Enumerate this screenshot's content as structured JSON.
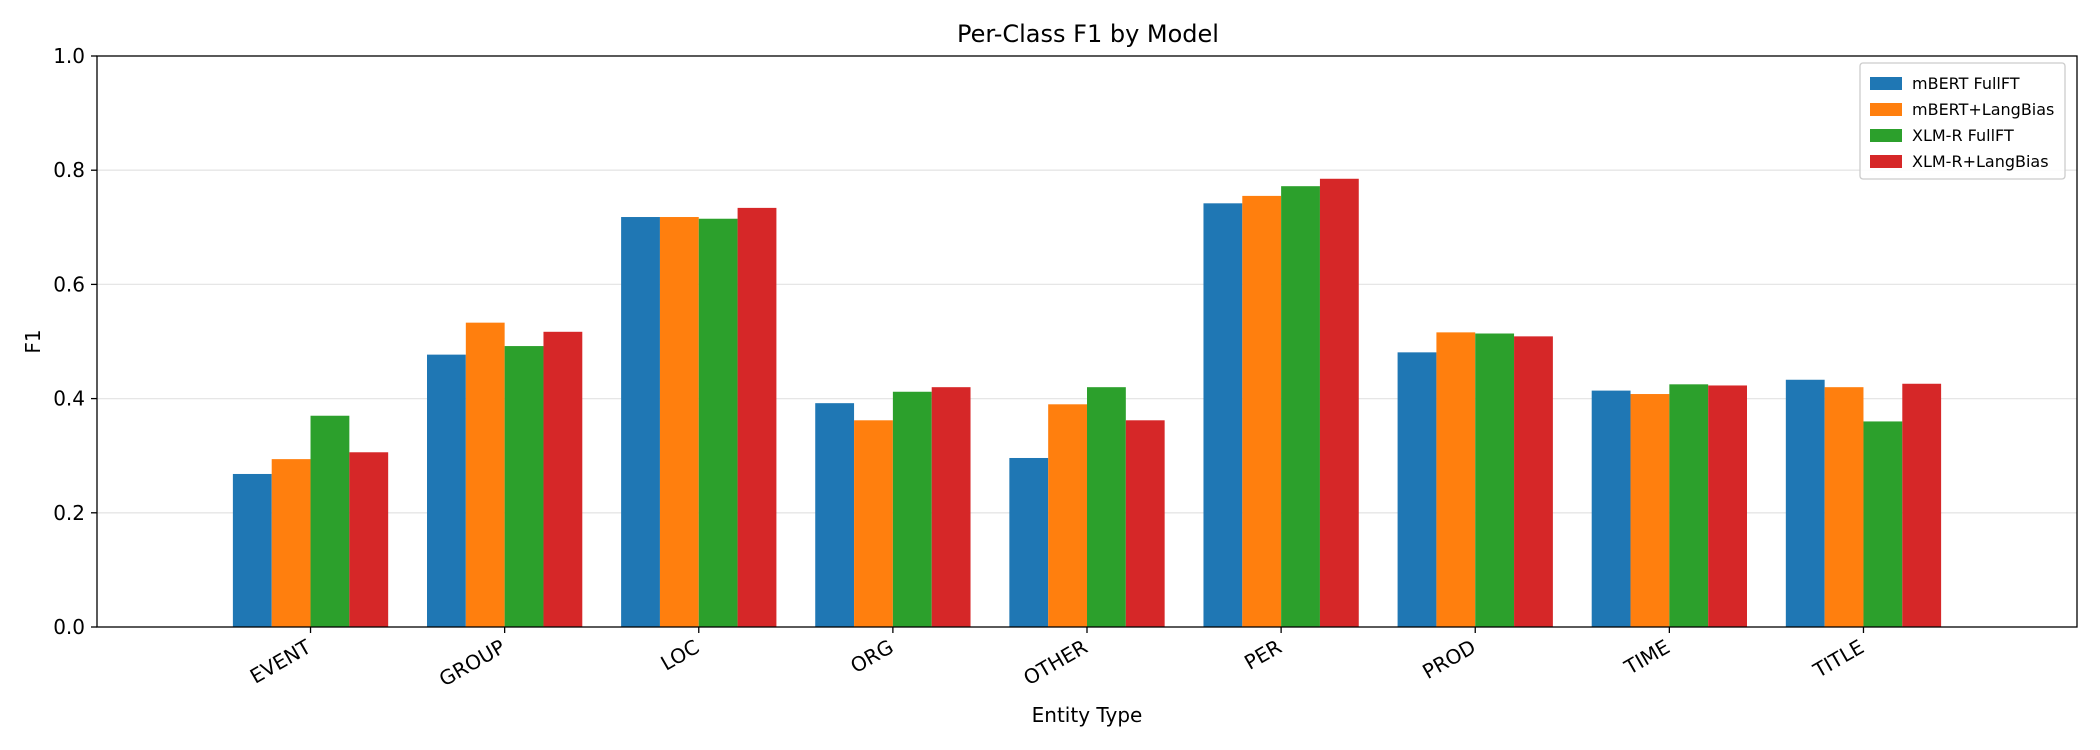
{
  "chart_data": {
    "type": "bar",
    "title": "Per-Class F1 by Model",
    "xlabel": "Entity Type",
    "ylabel": "F1",
    "ylim": [
      0,
      1.0
    ],
    "yticks": [
      "0.0",
      "0.2",
      "0.4",
      "0.6",
      "0.8",
      "1.0"
    ],
    "grid": "horizontal",
    "legend_position": "top-right",
    "categories": [
      "EVENT",
      "GROUP",
      "LOC",
      "ORG",
      "OTHER",
      "PER",
      "PROD",
      "TIME",
      "TITLE"
    ],
    "series": [
      {
        "name": "mBERT FullFT",
        "color": "#1f77b4",
        "values": [
          0.268,
          0.477,
          0.718,
          0.392,
          0.296,
          0.742,
          0.481,
          0.414,
          0.433
        ]
      },
      {
        "name": "mBERT+LangBias",
        "color": "#ff7f0e",
        "values": [
          0.294,
          0.533,
          0.718,
          0.362,
          0.39,
          0.755,
          0.516,
          0.408,
          0.42
        ]
      },
      {
        "name": "XLM-R FullFT",
        "color": "#2ca02c",
        "values": [
          0.37,
          0.492,
          0.715,
          0.412,
          0.42,
          0.772,
          0.514,
          0.425,
          0.36
        ]
      },
      {
        "name": "XLM-R+LangBias",
        "color": "#d62728",
        "values": [
          0.306,
          0.517,
          0.734,
          0.42,
          0.362,
          0.785,
          0.509,
          0.423,
          0.426
        ]
      }
    ]
  }
}
